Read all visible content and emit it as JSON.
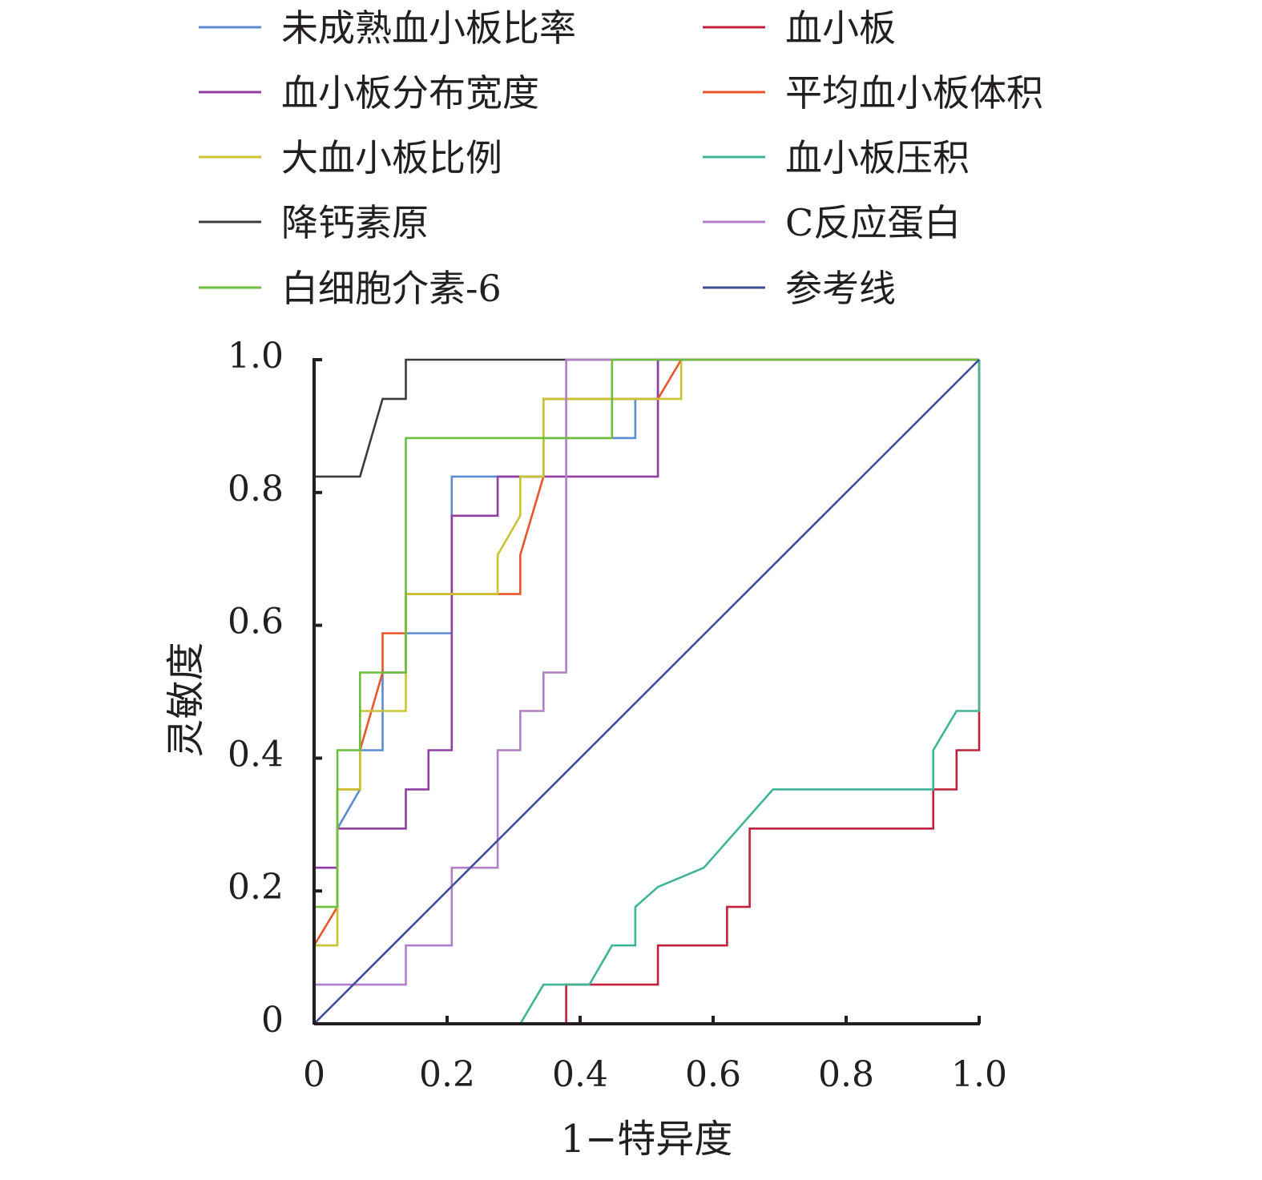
{
  "chart_data": {
    "type": "line",
    "xlabel": "1−特异度",
    "ylabel": "灵敏度",
    "xlim": [
      0,
      1.0
    ],
    "ylim": [
      0,
      1.0
    ],
    "xticks": [
      0,
      0.2,
      0.4,
      0.6,
      0.8,
      1.0
    ],
    "yticks": [
      0,
      0.2,
      0.4,
      0.6,
      0.8,
      1.0
    ],
    "xtick_labels": [
      "0",
      "0.2",
      "0.4",
      "0.6",
      "0.8",
      "1.0"
    ],
    "ytick_labels": [
      "0",
      "0.2",
      "0.4",
      "0.6",
      "0.8",
      "1.0"
    ],
    "grid": false,
    "legend_position": "top",
    "legend_columns": 2,
    "series": [
      {
        "name": "未成熟血小板比率",
        "color": "#5b8bd0",
        "points": [
          [
            0,
            0
          ],
          [
            0,
            0.235
          ],
          [
            0.035,
            0.235
          ],
          [
            0.035,
            0.294
          ],
          [
            0.069,
            0.353
          ],
          [
            0.069,
            0.412
          ],
          [
            0.103,
            0.412
          ],
          [
            0.103,
            0.529
          ],
          [
            0.138,
            0.529
          ],
          [
            0.138,
            0.588
          ],
          [
            0.207,
            0.588
          ],
          [
            0.207,
            0.824
          ],
          [
            0.345,
            0.824
          ],
          [
            0.345,
            0.882
          ],
          [
            0.483,
            0.882
          ],
          [
            0.483,
            0.941
          ],
          [
            0.517,
            0.941
          ],
          [
            0.517,
            1
          ],
          [
            1,
            1
          ]
        ]
      },
      {
        "name": "血小板",
        "color": "#c0223b",
        "points": [
          [
            0,
            0
          ],
          [
            0.379,
            0
          ],
          [
            0.379,
            0.059
          ],
          [
            0.517,
            0.059
          ],
          [
            0.517,
            0.118
          ],
          [
            0.621,
            0.118
          ],
          [
            0.621,
            0.176
          ],
          [
            0.655,
            0.176
          ],
          [
            0.655,
            0.294
          ],
          [
            0.931,
            0.294
          ],
          [
            0.931,
            0.353
          ],
          [
            0.966,
            0.353
          ],
          [
            0.966,
            0.412
          ],
          [
            1,
            0.412
          ],
          [
            1,
            1
          ]
        ]
      },
      {
        "name": "血小板分布宽度",
        "color": "#8f3ea3",
        "points": [
          [
            0,
            0
          ],
          [
            0,
            0.235
          ],
          [
            0.035,
            0.235
          ],
          [
            0.035,
            0.294
          ],
          [
            0.138,
            0.294
          ],
          [
            0.138,
            0.353
          ],
          [
            0.172,
            0.353
          ],
          [
            0.172,
            0.412
          ],
          [
            0.207,
            0.412
          ],
          [
            0.207,
            0.765
          ],
          [
            0.276,
            0.765
          ],
          [
            0.276,
            0.824
          ],
          [
            0.517,
            0.824
          ],
          [
            0.517,
            1
          ],
          [
            1,
            1
          ]
        ]
      },
      {
        "name": "平均血小板体积",
        "color": "#e8562a",
        "points": [
          [
            0,
            0
          ],
          [
            0,
            0.118
          ],
          [
            0.035,
            0.176
          ],
          [
            0.035,
            0.353
          ],
          [
            0.069,
            0.353
          ],
          [
            0.069,
            0.412
          ],
          [
            0.103,
            0.529
          ],
          [
            0.103,
            0.588
          ],
          [
            0.138,
            0.588
          ],
          [
            0.138,
            0.647
          ],
          [
            0.31,
            0.647
          ],
          [
            0.31,
            0.706
          ],
          [
            0.345,
            0.824
          ],
          [
            0.345,
            0.941
          ],
          [
            0.517,
            0.941
          ],
          [
            0.552,
            1
          ],
          [
            1,
            1
          ]
        ]
      },
      {
        "name": "大血小板比例",
        "color": "#c9c431",
        "points": [
          [
            0,
            0
          ],
          [
            0,
            0.118
          ],
          [
            0.035,
            0.118
          ],
          [
            0.035,
            0.353
          ],
          [
            0.069,
            0.353
          ],
          [
            0.069,
            0.471
          ],
          [
            0.138,
            0.471
          ],
          [
            0.138,
            0.647
          ],
          [
            0.276,
            0.647
          ],
          [
            0.276,
            0.706
          ],
          [
            0.31,
            0.765
          ],
          [
            0.31,
            0.824
          ],
          [
            0.345,
            0.824
          ],
          [
            0.345,
            0.941
          ],
          [
            0.552,
            0.941
          ],
          [
            0.552,
            1
          ],
          [
            1,
            1
          ]
        ]
      },
      {
        "name": "血小板压积",
        "color": "#3fb496",
        "points": [
          [
            0,
            0
          ],
          [
            0.31,
            0
          ],
          [
            0.345,
            0.059
          ],
          [
            0.414,
            0.059
          ],
          [
            0.448,
            0.118
          ],
          [
            0.483,
            0.118
          ],
          [
            0.483,
            0.176
          ],
          [
            0.517,
            0.206
          ],
          [
            0.586,
            0.235
          ],
          [
            0.69,
            0.353
          ],
          [
            0.931,
            0.353
          ],
          [
            0.931,
            0.412
          ],
          [
            0.966,
            0.471
          ],
          [
            1,
            0.471
          ],
          [
            1,
            1
          ]
        ]
      },
      {
        "name": "降钙素原",
        "color": "#3c3c3c",
        "points": [
          [
            0,
            0
          ],
          [
            0,
            0.824
          ],
          [
            0.069,
            0.824
          ],
          [
            0.103,
            0.941
          ],
          [
            0.138,
            0.941
          ],
          [
            0.138,
            1
          ],
          [
            1,
            1
          ]
        ]
      },
      {
        "name": "C反应蛋白",
        "color": "#b07fc8",
        "points": [
          [
            0,
            0
          ],
          [
            0,
            0.059
          ],
          [
            0.138,
            0.059
          ],
          [
            0.138,
            0.118
          ],
          [
            0.207,
            0.118
          ],
          [
            0.207,
            0.235
          ],
          [
            0.276,
            0.235
          ],
          [
            0.276,
            0.412
          ],
          [
            0.31,
            0.412
          ],
          [
            0.31,
            0.471
          ],
          [
            0.345,
            0.471
          ],
          [
            0.345,
            0.529
          ],
          [
            0.379,
            0.529
          ],
          [
            0.379,
            1
          ],
          [
            1,
            1
          ]
        ]
      },
      {
        "name": "白细胞介素-6",
        "color": "#6cbf3c",
        "points": [
          [
            0,
            0
          ],
          [
            0,
            0.176
          ],
          [
            0.035,
            0.176
          ],
          [
            0.035,
            0.412
          ],
          [
            0.069,
            0.412
          ],
          [
            0.069,
            0.529
          ],
          [
            0.138,
            0.529
          ],
          [
            0.138,
            0.882
          ],
          [
            0.448,
            0.882
          ],
          [
            0.448,
            1
          ],
          [
            1,
            1
          ]
        ]
      },
      {
        "name": "参考线",
        "color": "#3d4f9a",
        "points": [
          [
            0,
            0
          ],
          [
            1,
            1
          ]
        ]
      }
    ]
  }
}
